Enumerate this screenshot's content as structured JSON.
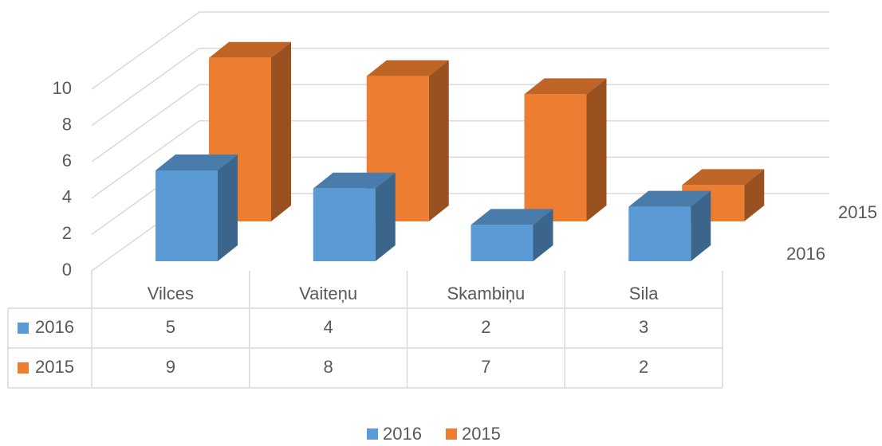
{
  "chart_data": {
    "type": "bar3d",
    "categories": [
      "Vilces",
      "Vaiteņu",
      "Skambiņu",
      "Sila"
    ],
    "series": [
      {
        "name": "2016",
        "color": "#5b9bd5",
        "values": [
          5,
          4,
          2,
          3
        ]
      },
      {
        "name": "2015",
        "color": "#ed7d31",
        "values": [
          9,
          8,
          7,
          2
        ]
      }
    ],
    "ylim": [
      0,
      10
    ],
    "yticks": [
      0,
      2,
      4,
      6,
      8,
      10
    ],
    "grid": true,
    "legend": "bottom",
    "data_table": true
  }
}
